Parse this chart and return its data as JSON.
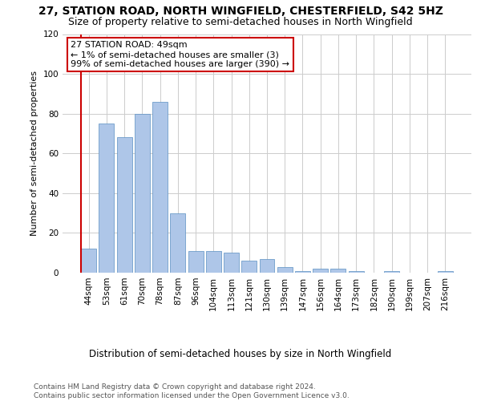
{
  "title_line1": "27, STATION ROAD, NORTH WINGFIELD, CHESTERFIELD, S42 5HZ",
  "title_line2": "Size of property relative to semi-detached houses in North Wingfield",
  "xlabel": "Distribution of semi-detached houses by size in North Wingfield",
  "ylabel": "Number of semi-detached properties",
  "categories": [
    "44sqm",
    "53sqm",
    "61sqm",
    "70sqm",
    "78sqm",
    "87sqm",
    "96sqm",
    "104sqm",
    "113sqm",
    "121sqm",
    "130sqm",
    "139sqm",
    "147sqm",
    "156sqm",
    "164sqm",
    "173sqm",
    "182sqm",
    "190sqm",
    "199sqm",
    "207sqm",
    "216sqm"
  ],
  "values": [
    12,
    75,
    68,
    80,
    86,
    30,
    11,
    11,
    10,
    6,
    7,
    3,
    1,
    2,
    2,
    1,
    0,
    1,
    0,
    0,
    1
  ],
  "bar_color": "#aec6e8",
  "bar_edge_color": "#5a8fc2",
  "highlight_line_color": "#cc0000",
  "annotation_text": "27 STATION ROAD: 49sqm\n← 1% of semi-detached houses are smaller (3)\n99% of semi-detached houses are larger (390) →",
  "annotation_box_color": "#ffffff",
  "annotation_box_edge_color": "#cc0000",
  "ylim": [
    0,
    120
  ],
  "yticks": [
    0,
    20,
    40,
    60,
    80,
    100,
    120
  ],
  "grid_color": "#cccccc",
  "background_color": "#ffffff",
  "footer_line1": "Contains HM Land Registry data © Crown copyright and database right 2024.",
  "footer_line2": "Contains public sector information licensed under the Open Government Licence v3.0.",
  "title_fontsize": 10,
  "subtitle_fontsize": 9,
  "ylabel_fontsize": 8,
  "xlabel_fontsize": 8.5,
  "tick_fontsize": 7.5,
  "annotation_fontsize": 8,
  "footer_fontsize": 6.5
}
